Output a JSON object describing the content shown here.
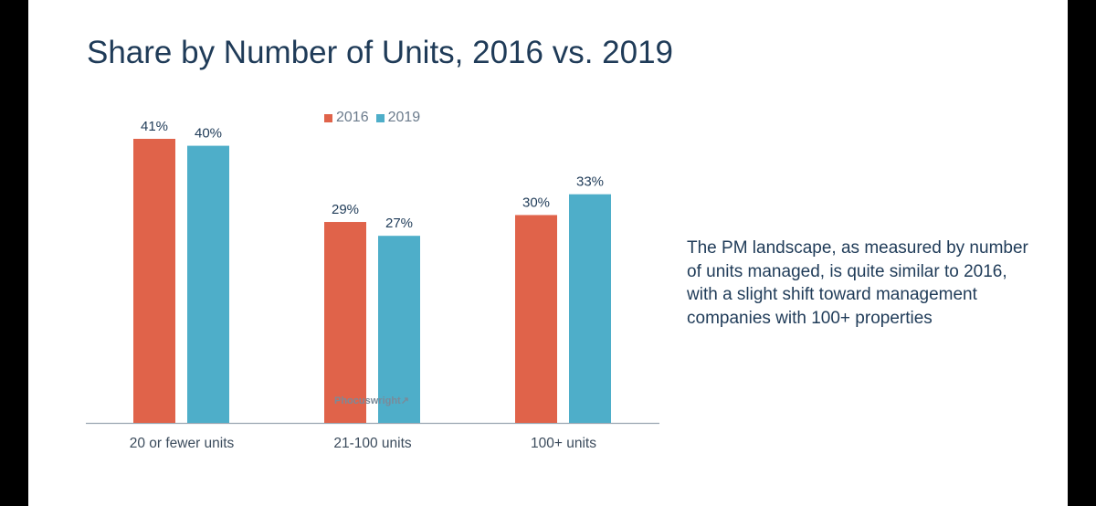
{
  "slide": {
    "title": "Share by Number of Units, 2016 vs. 2019",
    "note": "The PM landscape, as measured by number of units managed, is quite similar to 2016, with a slight shift toward management companies with 100+ properties",
    "watermark": "Phocuswright"
  },
  "colors": {
    "series_2016": "#e0634a",
    "series_2019": "#4eaec9",
    "axis": "#9aa5b1",
    "title": "#1f3b58"
  },
  "chart_data": {
    "type": "bar",
    "title": "Share by Number of Units, 2016 vs. 2019",
    "categories": [
      "20 or fewer units",
      "21-100 units",
      "100+ units"
    ],
    "series": [
      {
        "name": "2016",
        "values": [
          41,
          29,
          30
        ],
        "labels": [
          "41%",
          "29%",
          "30%"
        ]
      },
      {
        "name": "2019",
        "values": [
          40,
          27,
          33
        ],
        "labels": [
          "40%",
          "27%",
          "33%"
        ]
      }
    ],
    "ylim": [
      0,
      41
    ],
    "xlabel": "",
    "ylabel": "",
    "grid": false,
    "legend_position": "top-center"
  }
}
